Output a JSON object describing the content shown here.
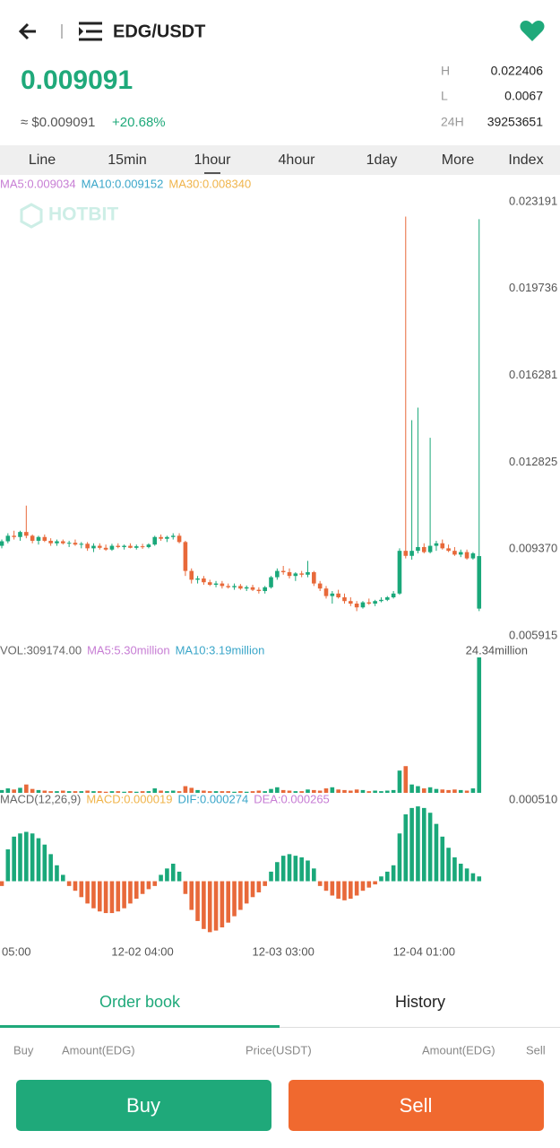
{
  "header": {
    "pair": "EDG/USDT"
  },
  "price": {
    "last": "0.009091",
    "fiat": "≈ $0.009091",
    "change": "+20.68%"
  },
  "stats": [
    {
      "label": "H",
      "value": "0.022406"
    },
    {
      "label": "L",
      "value": "0.0067"
    },
    {
      "label": "24H",
      "value": "39253651"
    }
  ],
  "intervals": [
    "Line",
    "15min",
    "1hour",
    "4hour",
    "1day",
    "More",
    "Index"
  ],
  "watermark": "HOTBIT",
  "chart_data": [
    {
      "type": "candlestick",
      "up_color": "#1aa87a",
      "down_color": "#e8693a",
      "legend": [
        {
          "text": "MA5:0.009034",
          "color": "#c77dd4"
        },
        {
          "text": "MA10:0.009152",
          "color": "#3aa6c9"
        },
        {
          "text": "MA30:0.008340",
          "color": "#f0b44a"
        }
      ],
      "ylim": [
        0.005915,
        0.023191
      ],
      "yticks": [
        0.023191,
        0.019736,
        0.016281,
        0.012825,
        {
          "value": 0.00937,
          "label": "0.009370"
        },
        0.005915
      ],
      "categories": [
        "05:00",
        null,
        null,
        null,
        null,
        null,
        null,
        null,
        null,
        null,
        null,
        null,
        null,
        null,
        null,
        null,
        null,
        null,
        null,
        null,
        null,
        null,
        null,
        "12-02 04:00",
        null,
        null,
        null,
        null,
        null,
        null,
        null,
        null,
        null,
        null,
        null,
        null,
        null,
        null,
        null,
        null,
        null,
        null,
        null,
        null,
        null,
        null,
        "12-03 03:00",
        null,
        null,
        null,
        null,
        null,
        null,
        null,
        null,
        null,
        null,
        null,
        null,
        null,
        null,
        null,
        null,
        null,
        null,
        null,
        null,
        null,
        null,
        "12-04 01:00",
        null,
        null,
        null,
        null,
        null,
        null,
        null,
        null,
        null
      ],
      "values": [
        [
          0.0095,
          0.00975,
          0.0094,
          0.00968
        ],
        [
          0.00968,
          0.01,
          0.0096,
          0.0099
        ],
        [
          0.0099,
          0.0101,
          0.00975,
          0.00985
        ],
        [
          0.00985,
          0.0101,
          0.0097,
          0.01005
        ],
        [
          0.01005,
          0.0111,
          0.0098,
          0.0099
        ],
        [
          0.0099,
          0.00995,
          0.0096,
          0.0097
        ],
        [
          0.0097,
          0.0099,
          0.00955,
          0.00985
        ],
        [
          0.00985,
          0.00995,
          0.00965,
          0.0097
        ],
        [
          0.0097,
          0.0098,
          0.0095,
          0.0096
        ],
        [
          0.0096,
          0.00975,
          0.0095,
          0.00968
        ],
        [
          0.00968,
          0.00975,
          0.00955,
          0.0096
        ],
        [
          0.0096,
          0.0097,
          0.00945,
          0.00962
        ],
        [
          0.00962,
          0.00975,
          0.0095,
          0.00955
        ],
        [
          0.00955,
          0.00965,
          0.0094,
          0.00958
        ],
        [
          0.00958,
          0.00965,
          0.0093,
          0.0094
        ],
        [
          0.0094,
          0.0096,
          0.00925,
          0.0095
        ],
        [
          0.0095,
          0.0096,
          0.00935,
          0.00942
        ],
        [
          0.00942,
          0.00955,
          0.0093,
          0.00935
        ],
        [
          0.00935,
          0.00958,
          0.0093,
          0.0095
        ],
        [
          0.0095,
          0.0096,
          0.0094,
          0.00945
        ],
        [
          0.00945,
          0.00955,
          0.00935,
          0.0095
        ],
        [
          0.0095,
          0.0096,
          0.0094,
          0.00942
        ],
        [
          0.00942,
          0.00955,
          0.00935,
          0.00948
        ],
        [
          0.00948,
          0.00958,
          0.00938,
          0.00945
        ],
        [
          0.00945,
          0.0096,
          0.0094,
          0.00955
        ],
        [
          0.00955,
          0.0099,
          0.0095,
          0.00985
        ],
        [
          0.00985,
          0.00995,
          0.0097,
          0.00978
        ],
        [
          0.00978,
          0.0099,
          0.00965,
          0.00985
        ],
        [
          0.00985,
          0.01,
          0.00975,
          0.0099
        ],
        [
          0.0099,
          0.01,
          0.0096,
          0.00965
        ],
        [
          0.00965,
          0.0097,
          0.0083,
          0.0085
        ],
        [
          0.0085,
          0.0086,
          0.008,
          0.00815
        ],
        [
          0.00815,
          0.0083,
          0.008,
          0.0082
        ],
        [
          0.0082,
          0.0083,
          0.00795,
          0.00805
        ],
        [
          0.00805,
          0.00815,
          0.0079,
          0.00795
        ],
        [
          0.00795,
          0.0081,
          0.00785,
          0.008
        ],
        [
          0.008,
          0.0081,
          0.0078,
          0.0079
        ],
        [
          0.0079,
          0.008,
          0.0078,
          0.00785
        ],
        [
          0.00785,
          0.008,
          0.00775,
          0.0079
        ],
        [
          0.0079,
          0.00798,
          0.00775,
          0.0078
        ],
        [
          0.0078,
          0.00792,
          0.0077,
          0.00785
        ],
        [
          0.00785,
          0.00795,
          0.0077,
          0.00775
        ],
        [
          0.00775,
          0.00785,
          0.0076,
          0.0077
        ],
        [
          0.0077,
          0.0079,
          0.0076,
          0.00785
        ],
        [
          0.00785,
          0.0083,
          0.0078,
          0.00825
        ],
        [
          0.00825,
          0.0086,
          0.00815,
          0.0085
        ],
        [
          0.0085,
          0.0087,
          0.00835,
          0.00845
        ],
        [
          0.00845,
          0.0086,
          0.0082,
          0.0083
        ],
        [
          0.0083,
          0.00845,
          0.0081,
          0.0084
        ],
        [
          0.0084,
          0.0085,
          0.00825,
          0.00835
        ],
        [
          0.00835,
          0.0089,
          0.00825,
          0.00845
        ],
        [
          0.00845,
          0.0085,
          0.0079,
          0.008
        ],
        [
          0.008,
          0.0081,
          0.0077,
          0.0078
        ],
        [
          0.0078,
          0.0079,
          0.0074,
          0.0075
        ],
        [
          0.0075,
          0.0077,
          0.0072,
          0.0076
        ],
        [
          0.0076,
          0.00775,
          0.0074,
          0.00745
        ],
        [
          0.00745,
          0.0076,
          0.0072,
          0.0073
        ],
        [
          0.0073,
          0.00745,
          0.0071,
          0.0072
        ],
        [
          0.0072,
          0.0073,
          0.0069,
          0.00705
        ],
        [
          0.00705,
          0.0073,
          0.007,
          0.00725
        ],
        [
          0.00725,
          0.0074,
          0.00715,
          0.0072
        ],
        [
          0.0072,
          0.00735,
          0.0071,
          0.0073
        ],
        [
          0.0073,
          0.00745,
          0.00725,
          0.00735
        ],
        [
          0.00735,
          0.0075,
          0.0073,
          0.00745
        ],
        [
          0.00745,
          0.0077,
          0.0074,
          0.0076
        ],
        [
          0.0076,
          0.0094,
          0.00755,
          0.0093
        ],
        [
          0.0093,
          0.0226,
          0.009,
          0.0091
        ],
        [
          0.0091,
          0.0145,
          0.00895,
          0.0093
        ],
        [
          0.0093,
          0.015,
          0.0092,
          0.00945
        ],
        [
          0.00945,
          0.0096,
          0.0092,
          0.00925
        ],
        [
          0.00925,
          0.0138,
          0.0092,
          0.0095
        ],
        [
          0.0095,
          0.0097,
          0.0093,
          0.0096
        ],
        [
          0.0096,
          0.00975,
          0.00935,
          0.0094
        ],
        [
          0.0094,
          0.00955,
          0.00925,
          0.0093
        ],
        [
          0.0093,
          0.00945,
          0.0091,
          0.00915
        ],
        [
          0.00915,
          0.00935,
          0.00905,
          0.00925
        ],
        [
          0.00925,
          0.00935,
          0.00895,
          0.009
        ],
        [
          0.009,
          0.00925,
          0.00895,
          0.0092
        ],
        [
          0.007,
          0.0225,
          0.0069,
          0.00909
        ]
      ]
    },
    {
      "type": "bar",
      "up_color": "#1aa87a",
      "down_color": "#e8693a",
      "legend": [
        {
          "text": "VOL:309174.00",
          "color": "#666666"
        },
        {
          "text": "MA5:5.30million",
          "color": "#c77dd4"
        },
        {
          "text": "MA10:3.19million",
          "color": "#3aa6c9"
        }
      ],
      "ylim": [
        0,
        24.34
      ],
      "yticks": [
        {
          "value": 24.34,
          "label": "24.34million"
        }
      ],
      "values": [
        0.5,
        0.8,
        0.6,
        0.9,
        1.5,
        0.7,
        0.5,
        0.4,
        0.3,
        0.3,
        0.4,
        0.3,
        0.3,
        0.3,
        0.4,
        0.3,
        0.3,
        0.2,
        0.3,
        0.3,
        0.2,
        0.3,
        0.2,
        0.3,
        0.3,
        0.8,
        0.4,
        0.3,
        0.4,
        0.3,
        1.2,
        0.9,
        0.5,
        0.4,
        0.3,
        0.3,
        0.3,
        0.3,
        0.2,
        0.3,
        0.2,
        0.3,
        0.4,
        0.3,
        0.7,
        1.0,
        0.5,
        0.4,
        0.3,
        0.3,
        0.6,
        0.5,
        0.4,
        0.8,
        1.0,
        0.6,
        0.5,
        0.4,
        0.6,
        0.5,
        0.3,
        0.4,
        0.3,
        0.4,
        0.5,
        4.0,
        4.8,
        1.5,
        1.2,
        0.8,
        1.0,
        0.7,
        0.6,
        0.5,
        0.6,
        0.5,
        0.4,
        0.8,
        24.34
      ]
    },
    {
      "type": "bar",
      "up_color": "#1aa87a",
      "down_color": "#e8693a",
      "legend": [
        {
          "text": "MACD(12,26,9)",
          "color": "#666666"
        },
        {
          "text": "MACD:0.000019",
          "color": "#f0b44a"
        },
        {
          "text": "DIF:0.000274",
          "color": "#3aa6c9"
        },
        {
          "text": "DEA:0.000265",
          "color": "#c77dd4"
        }
      ],
      "ylim": [
        -0.00038,
        0.00051
      ],
      "yticks": [
        {
          "value": 0.00051,
          "label": "0.000510"
        }
      ],
      "values": [
        -3e-05,
        0.0002,
        0.00028,
        0.0003,
        0.00031,
        0.0003,
        0.00027,
        0.00023,
        0.00017,
        0.0001,
        4e-05,
        -3e-05,
        -6e-05,
        -0.0001,
        -0.00014,
        -0.00017,
        -0.00019,
        -0.0002,
        -0.0002,
        -0.00019,
        -0.00017,
        -0.00014,
        -0.00011,
        -8e-05,
        -5e-05,
        -3e-05,
        4e-05,
        8e-05,
        0.00011,
        6e-05,
        -8e-05,
        -0.00018,
        -0.00025,
        -0.0003,
        -0.00032,
        -0.00031,
        -0.00029,
        -0.00026,
        -0.00022,
        -0.00018,
        -0.00014,
        -0.0001,
        -7e-05,
        -3e-05,
        6e-05,
        0.00012,
        0.00016,
        0.00017,
        0.00016,
        0.00015,
        0.00013,
        8e-05,
        -3e-05,
        -6e-05,
        -9e-05,
        -0.00011,
        -0.00012,
        -0.00011,
        -9e-05,
        -6e-05,
        -4e-05,
        -2e-05,
        3e-05,
        6e-05,
        0.0001,
        0.0003,
        0.00042,
        0.00046,
        0.00047,
        0.00046,
        0.00043,
        0.00036,
        0.00028,
        0.00021,
        0.00015,
        0.00011,
        8e-05,
        5e-05,
        3e-05
      ]
    }
  ],
  "tabs": [
    "Order book",
    "History"
  ],
  "columns": [
    "Buy",
    "Amount(EDG)",
    "Price(USDT)",
    "Amount(EDG)",
    "Sell"
  ],
  "buttons": [
    "Buy",
    "Sell"
  ]
}
